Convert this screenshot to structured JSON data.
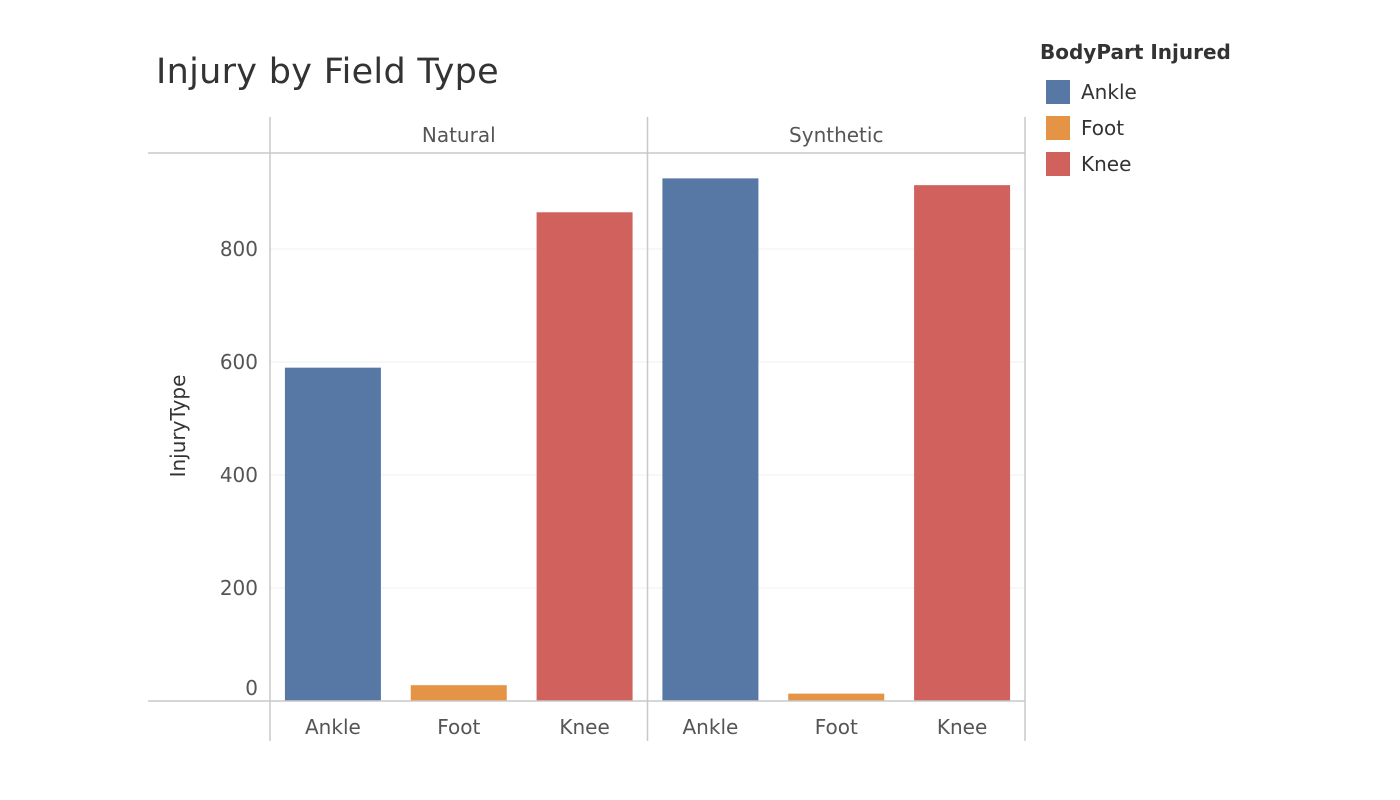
{
  "chart_data": {
    "type": "bar",
    "title": "Injury by Field Type",
    "ylabel": "InjuryType",
    "xlabel": "",
    "ylim": [
      0,
      960
    ],
    "yticks": [
      0,
      200,
      400,
      600,
      800
    ],
    "grid": true,
    "legend": {
      "title": "BodyPart Injured",
      "placement": "top-right",
      "entries": [
        {
          "name": "Ankle",
          "color": "#5778A4"
        },
        {
          "name": "Foot",
          "color": "#E49444"
        },
        {
          "name": "Knee",
          "color": "#D1615D"
        }
      ]
    },
    "panels": [
      {
        "label": "Natural",
        "categories": [
          "Ankle",
          "Foot",
          "Knee"
        ],
        "values": [
          590,
          28,
          865
        ]
      },
      {
        "label": "Synthetic",
        "categories": [
          "Ankle",
          "Foot",
          "Knee"
        ],
        "values": [
          925,
          13,
          913
        ]
      }
    ]
  }
}
